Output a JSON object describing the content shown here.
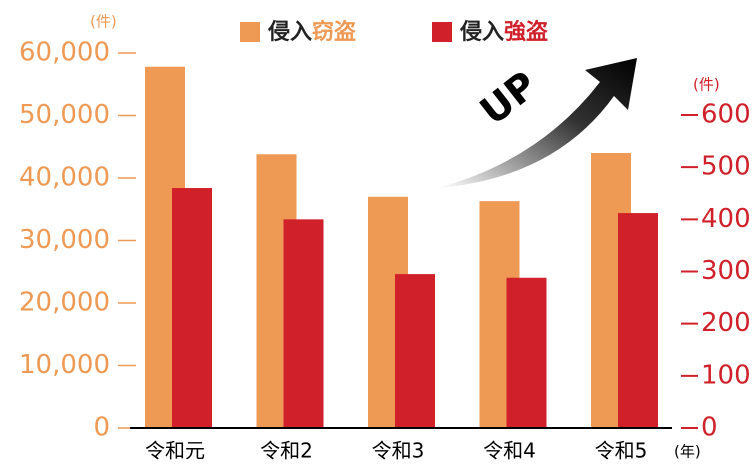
{
  "chart_data": {
    "type": "bar",
    "categories": [
      "令和元",
      "令和2",
      "令和3",
      "令和4",
      "令和5"
    ],
    "x_unit": "(年)",
    "y_unit": "(件)",
    "y2_unit": "(件)",
    "annotation": "UP",
    "series": [
      {
        "name": "侵入窃盗",
        "color": "#ee9a55",
        "values": [
          57800,
          43800,
          37000,
          36300,
          44000
        ]
      },
      {
        "name": "侵入強盗",
        "color": "#d0202a",
        "axis": "y2",
        "values": [
          460,
          400,
          295,
          288,
          412
        ]
      }
    ],
    "ylim": [
      0,
      60000
    ],
    "yticks": [
      0,
      {
        "value": 10000,
        "label": "10,000"
      },
      {
        "value": 20000,
        "label": "20,000"
      },
      {
        "value": 30000,
        "label": "30,000"
      },
      {
        "value": 40000,
        "label": "40,000"
      },
      {
        "value": 50000,
        "label": "50,000"
      },
      {
        "value": 60000,
        "label": "60,000"
      }
    ],
    "y2lim": [
      0,
      600
    ],
    "y2ticks": [
      0,
      100,
      200,
      300,
      400,
      500,
      600
    ]
  }
}
